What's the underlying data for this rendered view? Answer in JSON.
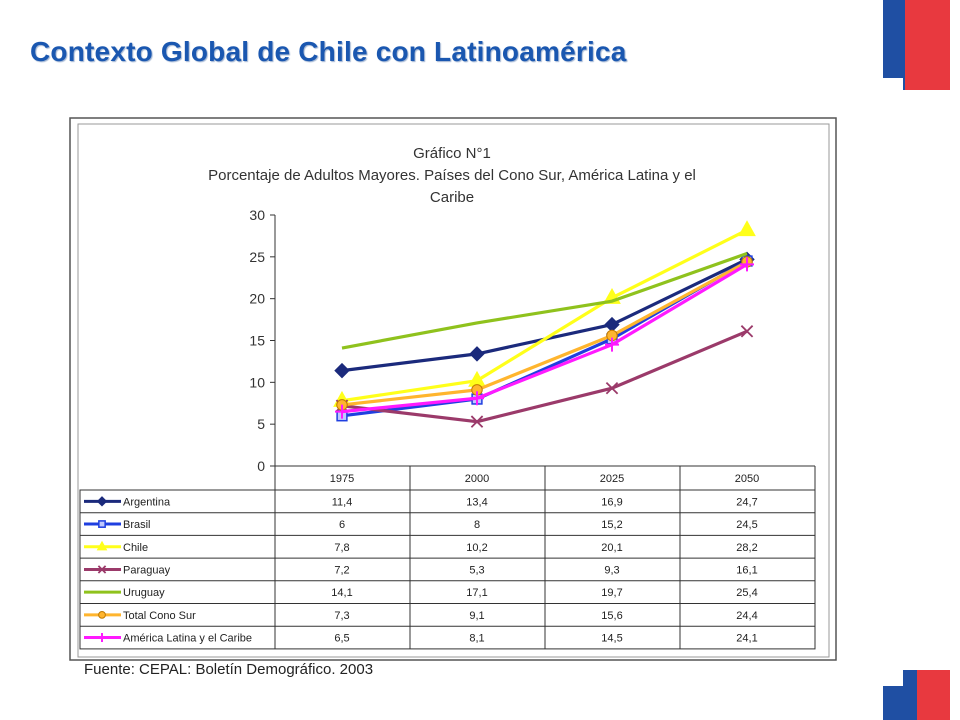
{
  "slide": {
    "title": "Contexto Global de Chile con Latinoamérica",
    "source": "Fuente: CEPAL: Boletín Demográfico. 2003",
    "colors": {
      "title": "#1a57b0",
      "flag_blue": "#1f4fa3",
      "flag_red": "#e8393f"
    }
  },
  "chart_data": {
    "type": "line",
    "title": "Gráfico N°1",
    "subtitle": [
      "Porcentaje de Adultos Mayores. Países del Cono Sur, América Latina y el",
      "Caribe"
    ],
    "x": [
      "1975",
      "2000",
      "2025",
      "2050"
    ],
    "yticks": [
      "0",
      "5",
      "10",
      "15",
      "20",
      "25",
      "30"
    ],
    "ylim": [
      0,
      30
    ],
    "grid": false,
    "legend": "table-below",
    "series": [
      {
        "name": "Argentina",
        "values": [
          11.4,
          13.4,
          16.9,
          24.7
        ],
        "labels": [
          "11,4",
          "13,4",
          "16,9",
          "24,7"
        ],
        "color": "#1b2a7c",
        "marker": "diamond"
      },
      {
        "name": "Brasil",
        "values": [
          6,
          8,
          15.2,
          24.5
        ],
        "labels": [
          "6",
          "8",
          "15,2",
          "24,5"
        ],
        "color": "#1f3fe0",
        "marker": "square"
      },
      {
        "name": "Chile",
        "values": [
          7.8,
          10.2,
          20.1,
          28.2
        ],
        "labels": [
          "7,8",
          "10,2",
          "20,1",
          "28,2"
        ],
        "color": "#ffff1a",
        "marker": "triangle"
      },
      {
        "name": "Paraguay",
        "values": [
          7.2,
          5.3,
          9.3,
          16.1
        ],
        "labels": [
          "7,2",
          "5,3",
          "9,3",
          "16,1"
        ],
        "color": "#9b3a6a",
        "marker": "x"
      },
      {
        "name": "Uruguay",
        "values": [
          14.1,
          17.1,
          19.7,
          25.4
        ],
        "labels": [
          "14,1",
          "17,1",
          "19,7",
          "25,4"
        ],
        "color": "#8fc21d",
        "marker": "none"
      },
      {
        "name": "Total Cono Sur",
        "values": [
          7.3,
          9.1,
          15.6,
          24.4
        ],
        "labels": [
          "7,3",
          "9,1",
          "15,6",
          "24,4"
        ],
        "color": "#ffb52e",
        "marker": "circle"
      },
      {
        "name": "América Latina y el Caribe",
        "values": [
          6.5,
          8.1,
          14.5,
          24.1
        ],
        "labels": [
          "6,5",
          "8,1",
          "14,5",
          "24,1"
        ],
        "color": "#ff1aff",
        "marker": "plus"
      }
    ]
  }
}
